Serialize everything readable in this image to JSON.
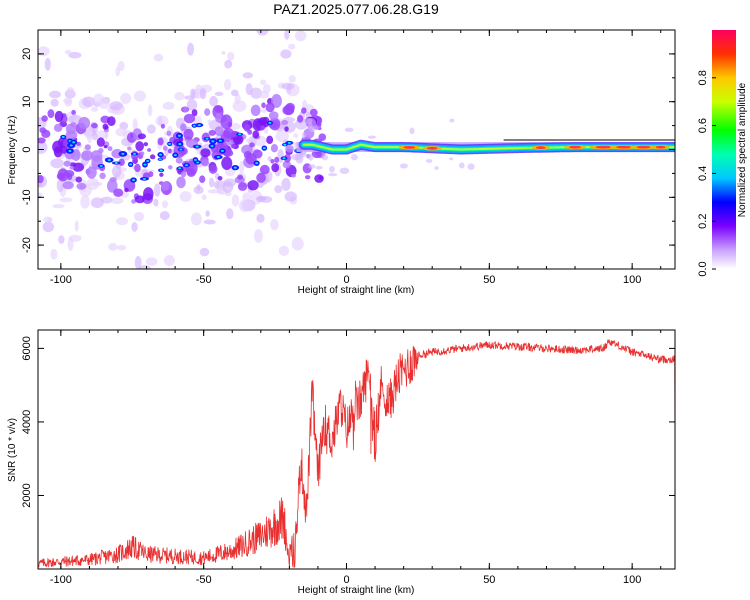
{
  "title": "PAZ1.2025.077.06.28.G19",
  "chart_data": [
    {
      "type": "heatmap",
      "xlabel": "Height of straight line (km)",
      "ylabel": "Frequency (Hz)",
      "xlim": [
        -108,
        115
      ],
      "ylim": [
        -25,
        25
      ],
      "xticks": [
        -100,
        -50,
        0,
        50,
        100
      ],
      "yticks": [
        -20,
        -10,
        0,
        10,
        20
      ],
      "colorbar": {
        "label": "Normalized spectral amplitude",
        "range": [
          0,
          1
        ],
        "ticks": [
          "0.0",
          "0.2",
          "0.4",
          "0.6",
          "0.8"
        ],
        "colormap": "rainbow"
      },
      "ridge": [
        {
          "x": -105,
          "y": 2
        },
        {
          "x": -95,
          "y": 0
        },
        {
          "x": -85,
          "y": -1
        },
        {
          "x": -75,
          "y": -3
        },
        {
          "x": -65,
          "y": -3
        },
        {
          "x": -55,
          "y": 1
        },
        {
          "x": -45,
          "y": 2
        },
        {
          "x": -35,
          "y": -1
        },
        {
          "x": -25,
          "y": 3
        },
        {
          "x": -18,
          "y": 1
        },
        {
          "x": -12,
          "y": 1
        },
        {
          "x": -5,
          "y": 0
        },
        {
          "x": 0,
          "y": 0
        },
        {
          "x": 5,
          "y": 1
        },
        {
          "x": 10,
          "y": 0.5
        },
        {
          "x": 20,
          "y": 0.5
        },
        {
          "x": 40,
          "y": 0
        },
        {
          "x": 60,
          "y": 0.3
        },
        {
          "x": 80,
          "y": 0.5
        },
        {
          "x": 100,
          "y": 0.5
        },
        {
          "x": 115,
          "y": 0.5
        }
      ]
    },
    {
      "type": "line",
      "xlabel": "Height of straight line (km)",
      "ylabel": "SNR (10 * v/v)",
      "xlim": [
        -108,
        115
      ],
      "ylim": [
        0,
        6500
      ],
      "xticks": [
        -100,
        -50,
        0,
        50,
        100
      ],
      "yticks": [
        2000,
        4000,
        6000
      ],
      "series": [
        {
          "color": "#e83030",
          "x": [
            -108,
            -100,
            -90,
            -80,
            -75,
            -70,
            -60,
            -50,
            -40,
            -30,
            -25,
            -22,
            -20,
            -18,
            -16,
            -14,
            -12,
            -10,
            -8,
            -5,
            -2,
            0,
            2,
            5,
            8,
            10,
            12,
            15,
            18,
            20,
            25,
            30,
            40,
            50,
            60,
            70,
            80,
            90,
            92,
            100,
            110,
            115
          ],
          "y": [
            150,
            200,
            250,
            400,
            600,
            400,
            350,
            300,
            500,
            900,
            1200,
            1400,
            200,
            500,
            3000,
            1500,
            4800,
            2500,
            4000,
            3500,
            4500,
            3800,
            4200,
            4600,
            5500,
            3000,
            5000,
            4500,
            5200,
            5400,
            5800,
            5900,
            6000,
            6100,
            6050,
            6000,
            5950,
            6000,
            6200,
            5900,
            5700,
            5700
          ]
        }
      ]
    }
  ]
}
